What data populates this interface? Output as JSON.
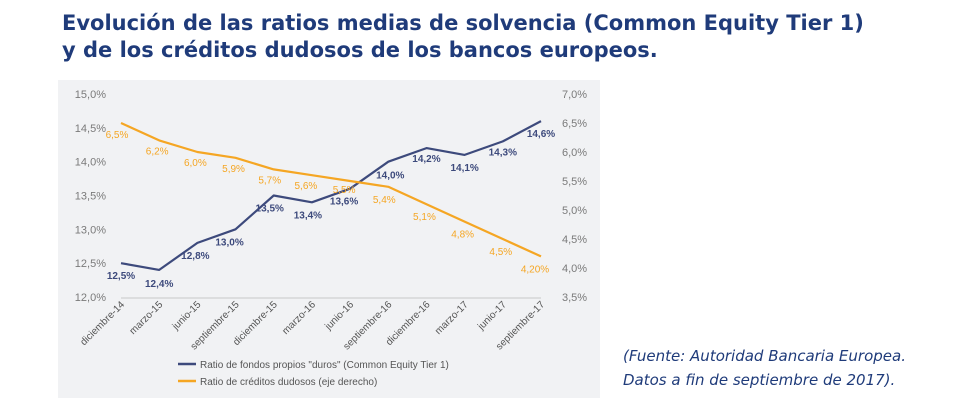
{
  "title": {
    "line1": "Evolución de las ratios medias de solvencia (Common Equity Tier 1)",
    "line2": "y de los créditos dudosos de los bancos europeos."
  },
  "source": {
    "line1": "(Fuente: Autoridad Bancaria Europea.",
    "line2": "Datos a fin de septiembre de 2017)."
  },
  "colors": {
    "cet1": "#3d4a7c",
    "npl": "#f5a623",
    "axis_text": "#7a7a7a",
    "panel": "#f1f2f4"
  },
  "chart_data": {
    "type": "line",
    "title": "",
    "xlabel": "",
    "categories": [
      "diciembre-14",
      "marzo-15",
      "junio-15",
      "septiembre-15",
      "diciembre-15",
      "marzo-16",
      "junio-16",
      "septiembre-16",
      "diciembre-16",
      "marzo-17",
      "junio-17",
      "septiembre-17"
    ],
    "y_left": {
      "min": 12.0,
      "max": 15.0,
      "step": 0.5,
      "ticks": [
        "12,0%",
        "12,5%",
        "13,0%",
        "13,5%",
        "14,0%",
        "14,5%",
        "15,0%"
      ]
    },
    "y_right": {
      "min": 3.5,
      "max": 7.0,
      "step": 0.5,
      "ticks": [
        "3,5%",
        "4,0%",
        "4,5%",
        "5,0%",
        "5,5%",
        "6,0%",
        "6,5%",
        "7,0%"
      ]
    },
    "grid": false,
    "legend_position": "bottom-left",
    "series": [
      {
        "name": "Ratio de fondos propios \"duros\" (Common Equity Tier 1)",
        "axis": "left",
        "values": [
          12.5,
          12.4,
          12.8,
          13.0,
          13.5,
          13.4,
          13.6,
          14.0,
          14.2,
          14.1,
          14.3,
          14.6
        ],
        "labels": [
          "12,5%",
          "12,4%",
          "12,8%",
          "13,0%",
          "13,5%",
          "13,4%",
          "13,6%",
          "14,0%",
          "14,2%",
          "14,1%",
          "14,3%",
          "14,6%"
        ]
      },
      {
        "name": "Ratio de créditos dudosos (eje derecho)",
        "axis": "right",
        "values": [
          6.5,
          6.2,
          6.0,
          5.9,
          5.7,
          5.6,
          5.5,
          5.4,
          5.1,
          4.8,
          4.5,
          4.2
        ],
        "labels": [
          "6,5%",
          "6,2%",
          "6,0%",
          "5,9%",
          "5,7%",
          "5,6%",
          "5,5%",
          "5,4%",
          "5,1%",
          "4,8%",
          "4,5%",
          "4,20%"
        ]
      }
    ]
  }
}
